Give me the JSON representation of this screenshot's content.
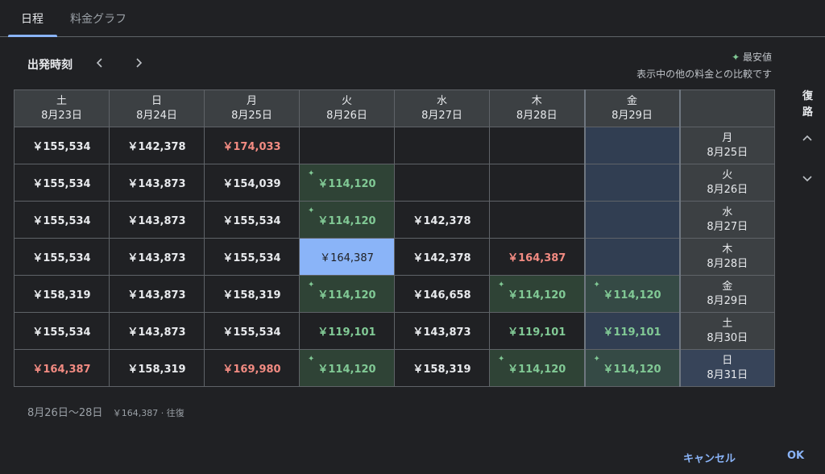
{
  "tabs": [
    {
      "label": "日程"
    },
    {
      "label": "料金グラフ"
    }
  ],
  "departure_label": "出発時刻",
  "legend": {
    "icon": "sparkle-icon",
    "label": "最安値",
    "note": "表示中の他の料金との比較です"
  },
  "return_label": "復路",
  "columns": [
    {
      "day": "土",
      "date": "8月23日"
    },
    {
      "day": "日",
      "date": "8月24日"
    },
    {
      "day": "月",
      "date": "8月25日"
    },
    {
      "day": "火",
      "date": "8月26日"
    },
    {
      "day": "水",
      "date": "8月27日"
    },
    {
      "day": "木",
      "date": "8月28日"
    },
    {
      "day": "金",
      "date": "8月29日"
    }
  ],
  "rows": [
    {
      "day": "月",
      "date": "8月25日",
      "cells": [
        "￥155,534",
        "￥142,378",
        "￥174,033",
        "",
        "",
        "",
        ""
      ]
    },
    {
      "day": "火",
      "date": "8月26日",
      "cells": [
        "￥155,534",
        "￥143,873",
        "￥154,039",
        "￥114,120",
        "",
        "",
        ""
      ]
    },
    {
      "day": "水",
      "date": "8月27日",
      "cells": [
        "￥155,534",
        "￥143,873",
        "￥155,534",
        "￥114,120",
        "￥142,378",
        "",
        ""
      ]
    },
    {
      "day": "木",
      "date": "8月28日",
      "cells": [
        "￥155,534",
        "￥143,873",
        "￥155,534",
        "￥164,387",
        "￥142,378",
        "￥164,387",
        ""
      ]
    },
    {
      "day": "金",
      "date": "8月29日",
      "cells": [
        "￥158,319",
        "￥143,873",
        "￥158,319",
        "￥114,120",
        "￥146,658",
        "￥114,120",
        "￥114,120"
      ]
    },
    {
      "day": "土",
      "date": "8月30日",
      "cells": [
        "￥155,534",
        "￥143,873",
        "￥155,534",
        "￥119,101",
        "￥143,873",
        "￥119,101",
        "￥119,101"
      ]
    },
    {
      "day": "日",
      "date": "8月31日",
      "cells": [
        "￥164,387",
        "￥158,319",
        "￥169,980",
        "￥114,120",
        "￥158,319",
        "￥114,120",
        "￥114,120"
      ]
    }
  ],
  "summary": {
    "dates": "8月26日〜28日",
    "price": "￥164,387 · 往復"
  },
  "buttons": {
    "cancel": "キャンセル",
    "ok": "OK"
  },
  "colors": {
    "accent": "#8ab4f8",
    "lowest": "#81c995",
    "high": "#f28b82"
  }
}
